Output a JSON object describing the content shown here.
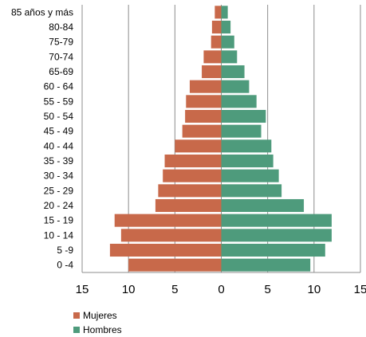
{
  "chart_data": {
    "type": "bar",
    "orientation": "horizontal",
    "categories": [
      "85 años y más",
      "80-84",
      "75-79",
      "70-74",
      "65-69",
      "60 - 64",
      "55 - 59",
      "50 - 54",
      "45 - 49",
      "40 - 44",
      "35 - 39",
      "30 - 34",
      "25 - 29",
      "20 - 24",
      "15 - 19",
      "10 - 14",
      "5 -9",
      "0 -4"
    ],
    "series": [
      {
        "name": "Mujeres",
        "color": "#c8694a",
        "values": [
          0.7,
          1.0,
          1.1,
          1.9,
          2.1,
          3.4,
          3.8,
          3.9,
          4.2,
          5.0,
          6.1,
          6.3,
          6.8,
          7.1,
          11.5,
          10.8,
          12.0,
          10.0
        ]
      },
      {
        "name": "Hombres",
        "color": "#4e9b7c",
        "values": [
          0.7,
          1.0,
          1.4,
          1.7,
          2.5,
          3.0,
          3.8,
          4.8,
          4.3,
          5.4,
          5.6,
          6.2,
          6.5,
          8.9,
          11.9,
          11.9,
          11.2,
          9.6
        ]
      }
    ],
    "x_ticks": [
      "15",
      "10",
      "5",
      "0",
      "5",
      "10",
      "15"
    ],
    "xlim": [
      -15,
      15
    ],
    "grid": true,
    "legend_position": "bottom-left"
  },
  "legend": {
    "mujeres": "Mujeres",
    "hombres": "Hombres"
  }
}
